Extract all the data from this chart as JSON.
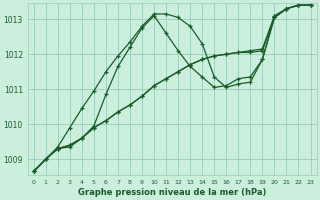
{
  "bg_color": "#cceedd",
  "grid_color": "#99ccbb",
  "line_color": "#1a5c2a",
  "title": "Graphe pression niveau de la mer (hPa)",
  "xlim": [
    -0.5,
    23.5
  ],
  "ylim": [
    1008.55,
    1013.45
  ],
  "yticks": [
    1009,
    1010,
    1011,
    1012,
    1013
  ],
  "xticks": [
    0,
    1,
    2,
    3,
    4,
    5,
    6,
    7,
    8,
    9,
    10,
    11,
    12,
    13,
    14,
    15,
    16,
    17,
    18,
    19,
    20,
    21,
    22,
    23
  ],
  "series": [
    {
      "x": [
        0,
        1,
        2,
        3,
        4,
        5,
        6,
        7,
        8,
        9,
        10,
        11,
        12,
        13,
        14,
        15,
        16,
        17,
        18,
        19,
        20,
        21,
        22,
        23
      ],
      "y": [
        1008.65,
        1009.0,
        1009.3,
        1009.35,
        1009.6,
        1009.95,
        1010.85,
        1011.65,
        1012.2,
        1012.75,
        1013.1,
        1012.6,
        1012.1,
        1011.65,
        1011.35,
        1011.05,
        1011.1,
        1011.3,
        1011.35,
        1011.85,
        1013.05,
        1013.3,
        1013.4,
        1013.4
      ]
    },
    {
      "x": [
        0,
        1,
        2,
        3,
        4,
        5,
        6,
        7,
        8,
        9,
        10,
        11,
        12,
        13,
        14,
        15,
        16,
        17,
        18,
        19,
        20,
        21,
        22,
        23
      ],
      "y": [
        1008.65,
        1009.0,
        1009.3,
        1009.4,
        1009.6,
        1009.9,
        1010.1,
        1010.35,
        1010.55,
        1010.8,
        1011.1,
        1011.3,
        1011.5,
        1011.7,
        1011.85,
        1011.95,
        1012.0,
        1012.05,
        1012.05,
        1012.1,
        1013.05,
        1013.3,
        1013.4,
        1013.4
      ]
    },
    {
      "x": [
        0,
        1,
        2,
        3,
        4,
        5,
        6,
        7,
        8,
        9,
        10,
        11,
        12,
        13,
        14,
        15,
        16,
        17,
        18,
        19,
        20,
        21,
        22,
        23
      ],
      "y": [
        1008.65,
        1009.0,
        1009.3,
        1009.4,
        1009.6,
        1009.9,
        1010.1,
        1010.35,
        1010.55,
        1010.8,
        1011.1,
        1011.3,
        1011.5,
        1011.7,
        1011.85,
        1011.95,
        1012.0,
        1012.05,
        1012.1,
        1012.15,
        1013.1,
        1013.3,
        1013.4,
        1013.4
      ]
    },
    {
      "x": [
        0,
        2,
        3,
        4,
        5,
        6,
        7,
        8,
        9,
        10,
        11,
        12,
        13,
        14,
        15,
        16,
        17,
        18,
        19,
        20,
        21,
        22,
        23
      ],
      "y": [
        1008.65,
        1009.35,
        1009.9,
        1010.45,
        1010.95,
        1011.5,
        1011.95,
        1012.35,
        1012.8,
        1013.15,
        1013.15,
        1013.05,
        1012.8,
        1012.3,
        1011.35,
        1011.05,
        1011.15,
        1011.2,
        1011.85,
        1013.05,
        1013.3,
        1013.4,
        1013.4
      ]
    }
  ]
}
